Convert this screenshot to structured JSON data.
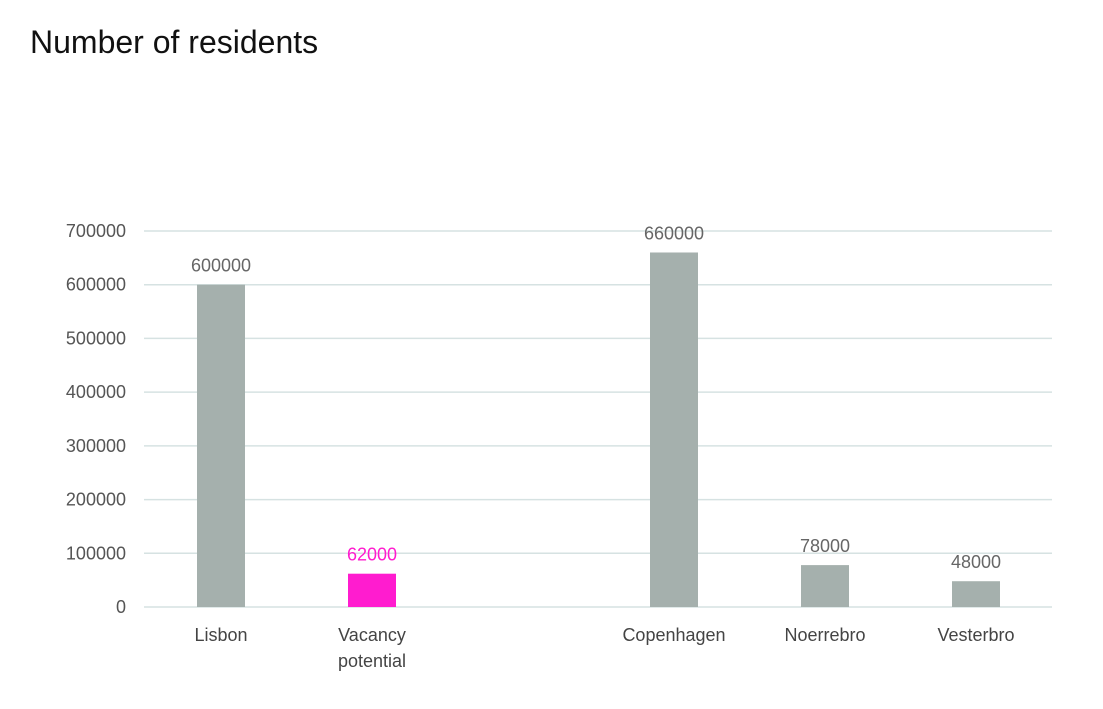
{
  "title": "Number of residents",
  "colors": {
    "bar": "#a5b0ad",
    "highlight": "#ff1ccf",
    "grid": "#d6e2e2",
    "label": "#666666"
  },
  "chart_data": {
    "type": "bar",
    "title": "Number of residents",
    "xlabel": "",
    "ylabel": "",
    "ylim": [
      0,
      700000
    ],
    "yticks": [
      0,
      100000,
      200000,
      300000,
      400000,
      500000,
      600000,
      700000
    ],
    "grid": true,
    "legend": "none",
    "categories": [
      "Lisbon",
      "Vacancy potential",
      "Copenhagen",
      "Noerrebro",
      "Vesterbro"
    ],
    "category_lines": [
      [
        "Lisbon"
      ],
      [
        "Vacancy",
        "potential"
      ],
      [
        "Copenhagen"
      ],
      [
        "Noerrebro"
      ],
      [
        "Vesterbro"
      ]
    ],
    "values": [
      600000,
      62000,
      660000,
      78000,
      48000
    ],
    "value_labels": [
      "600000",
      "62000",
      "660000",
      "78000",
      "48000"
    ],
    "highlight": [
      false,
      true,
      false,
      false,
      false
    ]
  }
}
